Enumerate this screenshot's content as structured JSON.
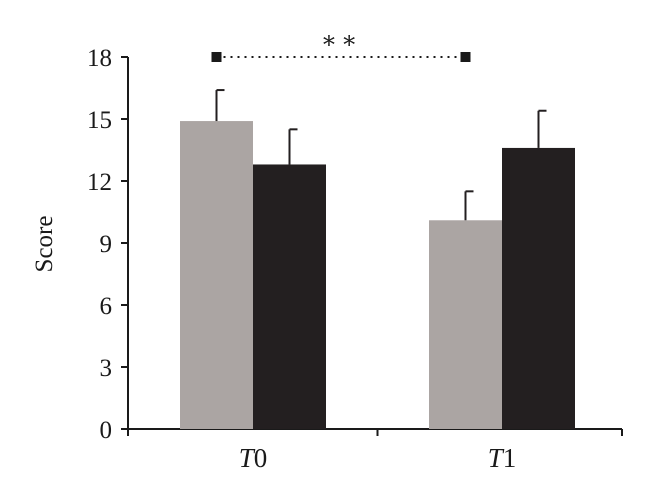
{
  "chart_data": {
    "type": "bar",
    "ylabel": "Score",
    "ylim": [
      0,
      18
    ],
    "yticks": [
      "0",
      "3",
      "6",
      "9",
      "12",
      "15",
      "18"
    ],
    "categories": [
      {
        "prefix": "T",
        "suffix": "0"
      },
      {
        "prefix": "T",
        "suffix": "1"
      }
    ],
    "series": [
      {
        "color": "#aba5a3",
        "values": [
          14.9,
          10.1
        ],
        "errors": [
          1.5,
          1.4
        ]
      },
      {
        "color": "#231f20",
        "values": [
          12.8,
          13.6
        ],
        "errors": [
          1.7,
          1.8
        ]
      }
    ],
    "annotation": {
      "text": "∗∗",
      "from_category": 0,
      "to_category": 1,
      "y": 18
    },
    "colors": {
      "axis": "#1a1a1a",
      "error_bar": "#231f20"
    }
  }
}
